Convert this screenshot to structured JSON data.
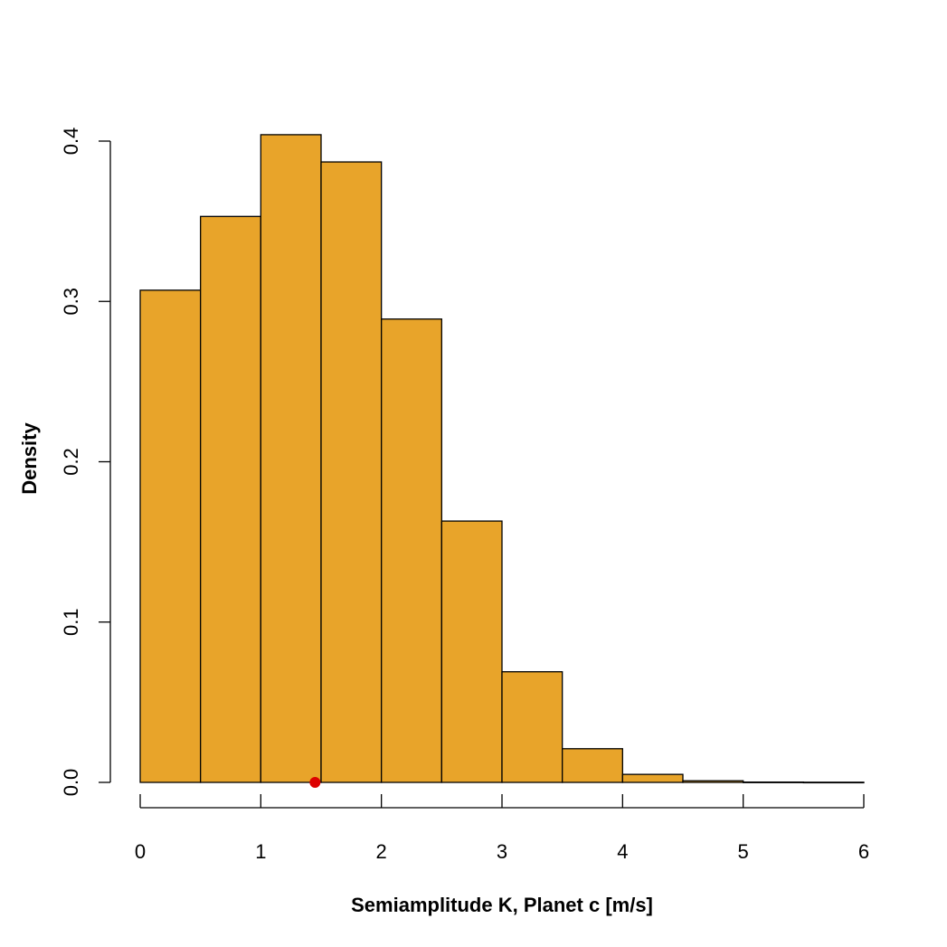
{
  "chart_data": {
    "type": "bar",
    "subtype": "histogram",
    "xlabel": "Semiamplitude K, Planet c [m/s]",
    "ylabel": "Density",
    "xlim": [
      0,
      6
    ],
    "ylim": [
      0,
      0.4
    ],
    "x_ticks": [
      0,
      1,
      2,
      3,
      4,
      5,
      6
    ],
    "x_tick_labels": [
      "0",
      "1",
      "2",
      "3",
      "4",
      "5",
      "6"
    ],
    "y_ticks": [
      0,
      0.1,
      0.2,
      0.3,
      0.4
    ],
    "y_tick_labels": [
      "0.0",
      "0.1",
      "0.2",
      "0.3",
      "0.4"
    ],
    "bin_edges": [
      0,
      0.5,
      1,
      1.5,
      2,
      2.5,
      3,
      3.5,
      4,
      4.5,
      5,
      5.5,
      6
    ],
    "values": [
      0.307,
      0.353,
      0.404,
      0.387,
      0.289,
      0.163,
      0.069,
      0.021,
      0.005,
      0.001,
      0.0002,
      0.0001
    ],
    "marker": {
      "x": 1.45,
      "y": 0,
      "color": "#dd0000"
    },
    "bar_color": "#e8a42a",
    "edge_color": "#000000",
    "grid": false,
    "legend": "none"
  }
}
